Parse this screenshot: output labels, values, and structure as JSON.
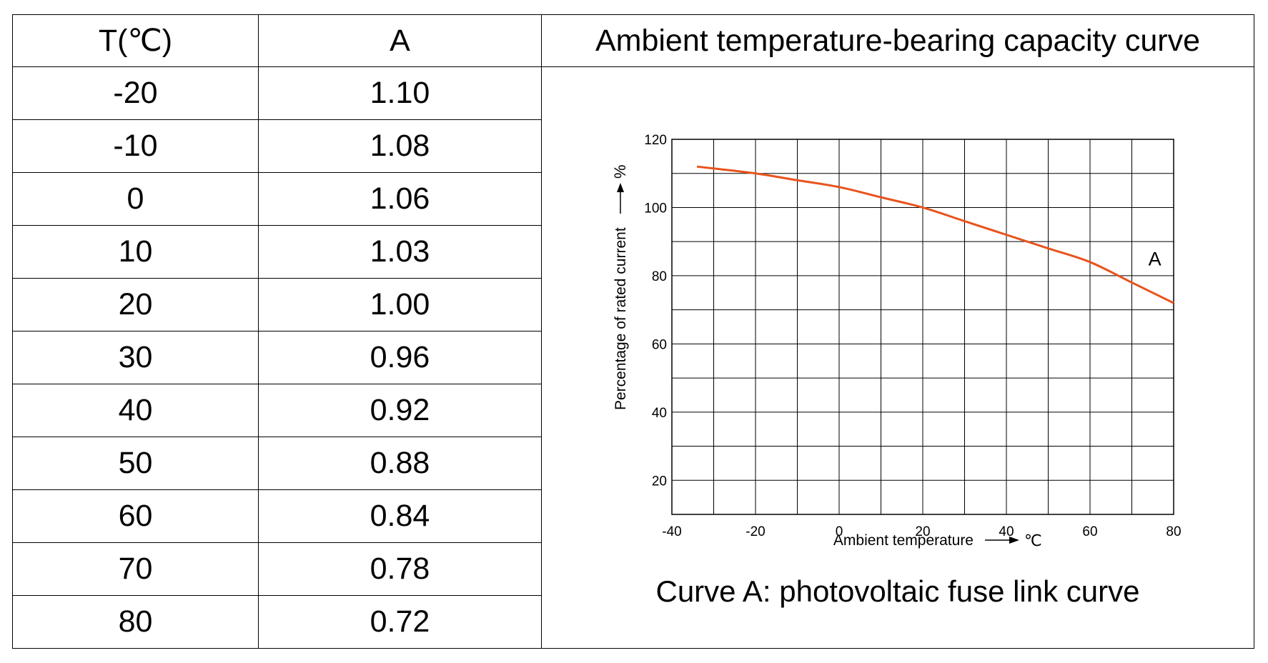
{
  "table": {
    "headers": {
      "t": "T(℃)",
      "a": "A",
      "chart_title": "Ambient temperature-bearing capacity curve"
    },
    "rows": [
      {
        "t": "-20",
        "a": "1.10"
      },
      {
        "t": "-10",
        "a": "1.08"
      },
      {
        "t": "0",
        "a": "1.06"
      },
      {
        "t": "10",
        "a": "1.03"
      },
      {
        "t": "20",
        "a": "1.00"
      },
      {
        "t": "30",
        "a": "0.96"
      },
      {
        "t": "40",
        "a": "0.92"
      },
      {
        "t": "50",
        "a": "0.88"
      },
      {
        "t": "60",
        "a": "0.84"
      },
      {
        "t": "70",
        "a": "0.78"
      },
      {
        "t": "80",
        "a": "0.72"
      }
    ]
  },
  "caption": "Curve A: photovoltaic fuse link curve",
  "chart_data": {
    "type": "line",
    "xlabel": "Ambient temperature",
    "x_unit": "℃",
    "ylabel": "Percentage of rated current",
    "y_unit": "%",
    "xlim": [
      -40,
      80
    ],
    "ylim": [
      10,
      120
    ],
    "x_ticks": [
      "-40",
      "-20",
      "0",
      "20",
      "40",
      "60",
      "80"
    ],
    "y_ticks": [
      "20",
      "40",
      "60",
      "80",
      "100",
      "120"
    ],
    "grid": true,
    "series": [
      {
        "name": "A",
        "color": "#e8531c",
        "x": [
          -34,
          -20,
          -10,
          0,
          10,
          20,
          30,
          40,
          50,
          60,
          70,
          80
        ],
        "y": [
          112,
          110,
          108,
          106,
          103,
          100,
          96,
          92,
          88,
          84,
          78,
          72
        ]
      }
    ]
  }
}
